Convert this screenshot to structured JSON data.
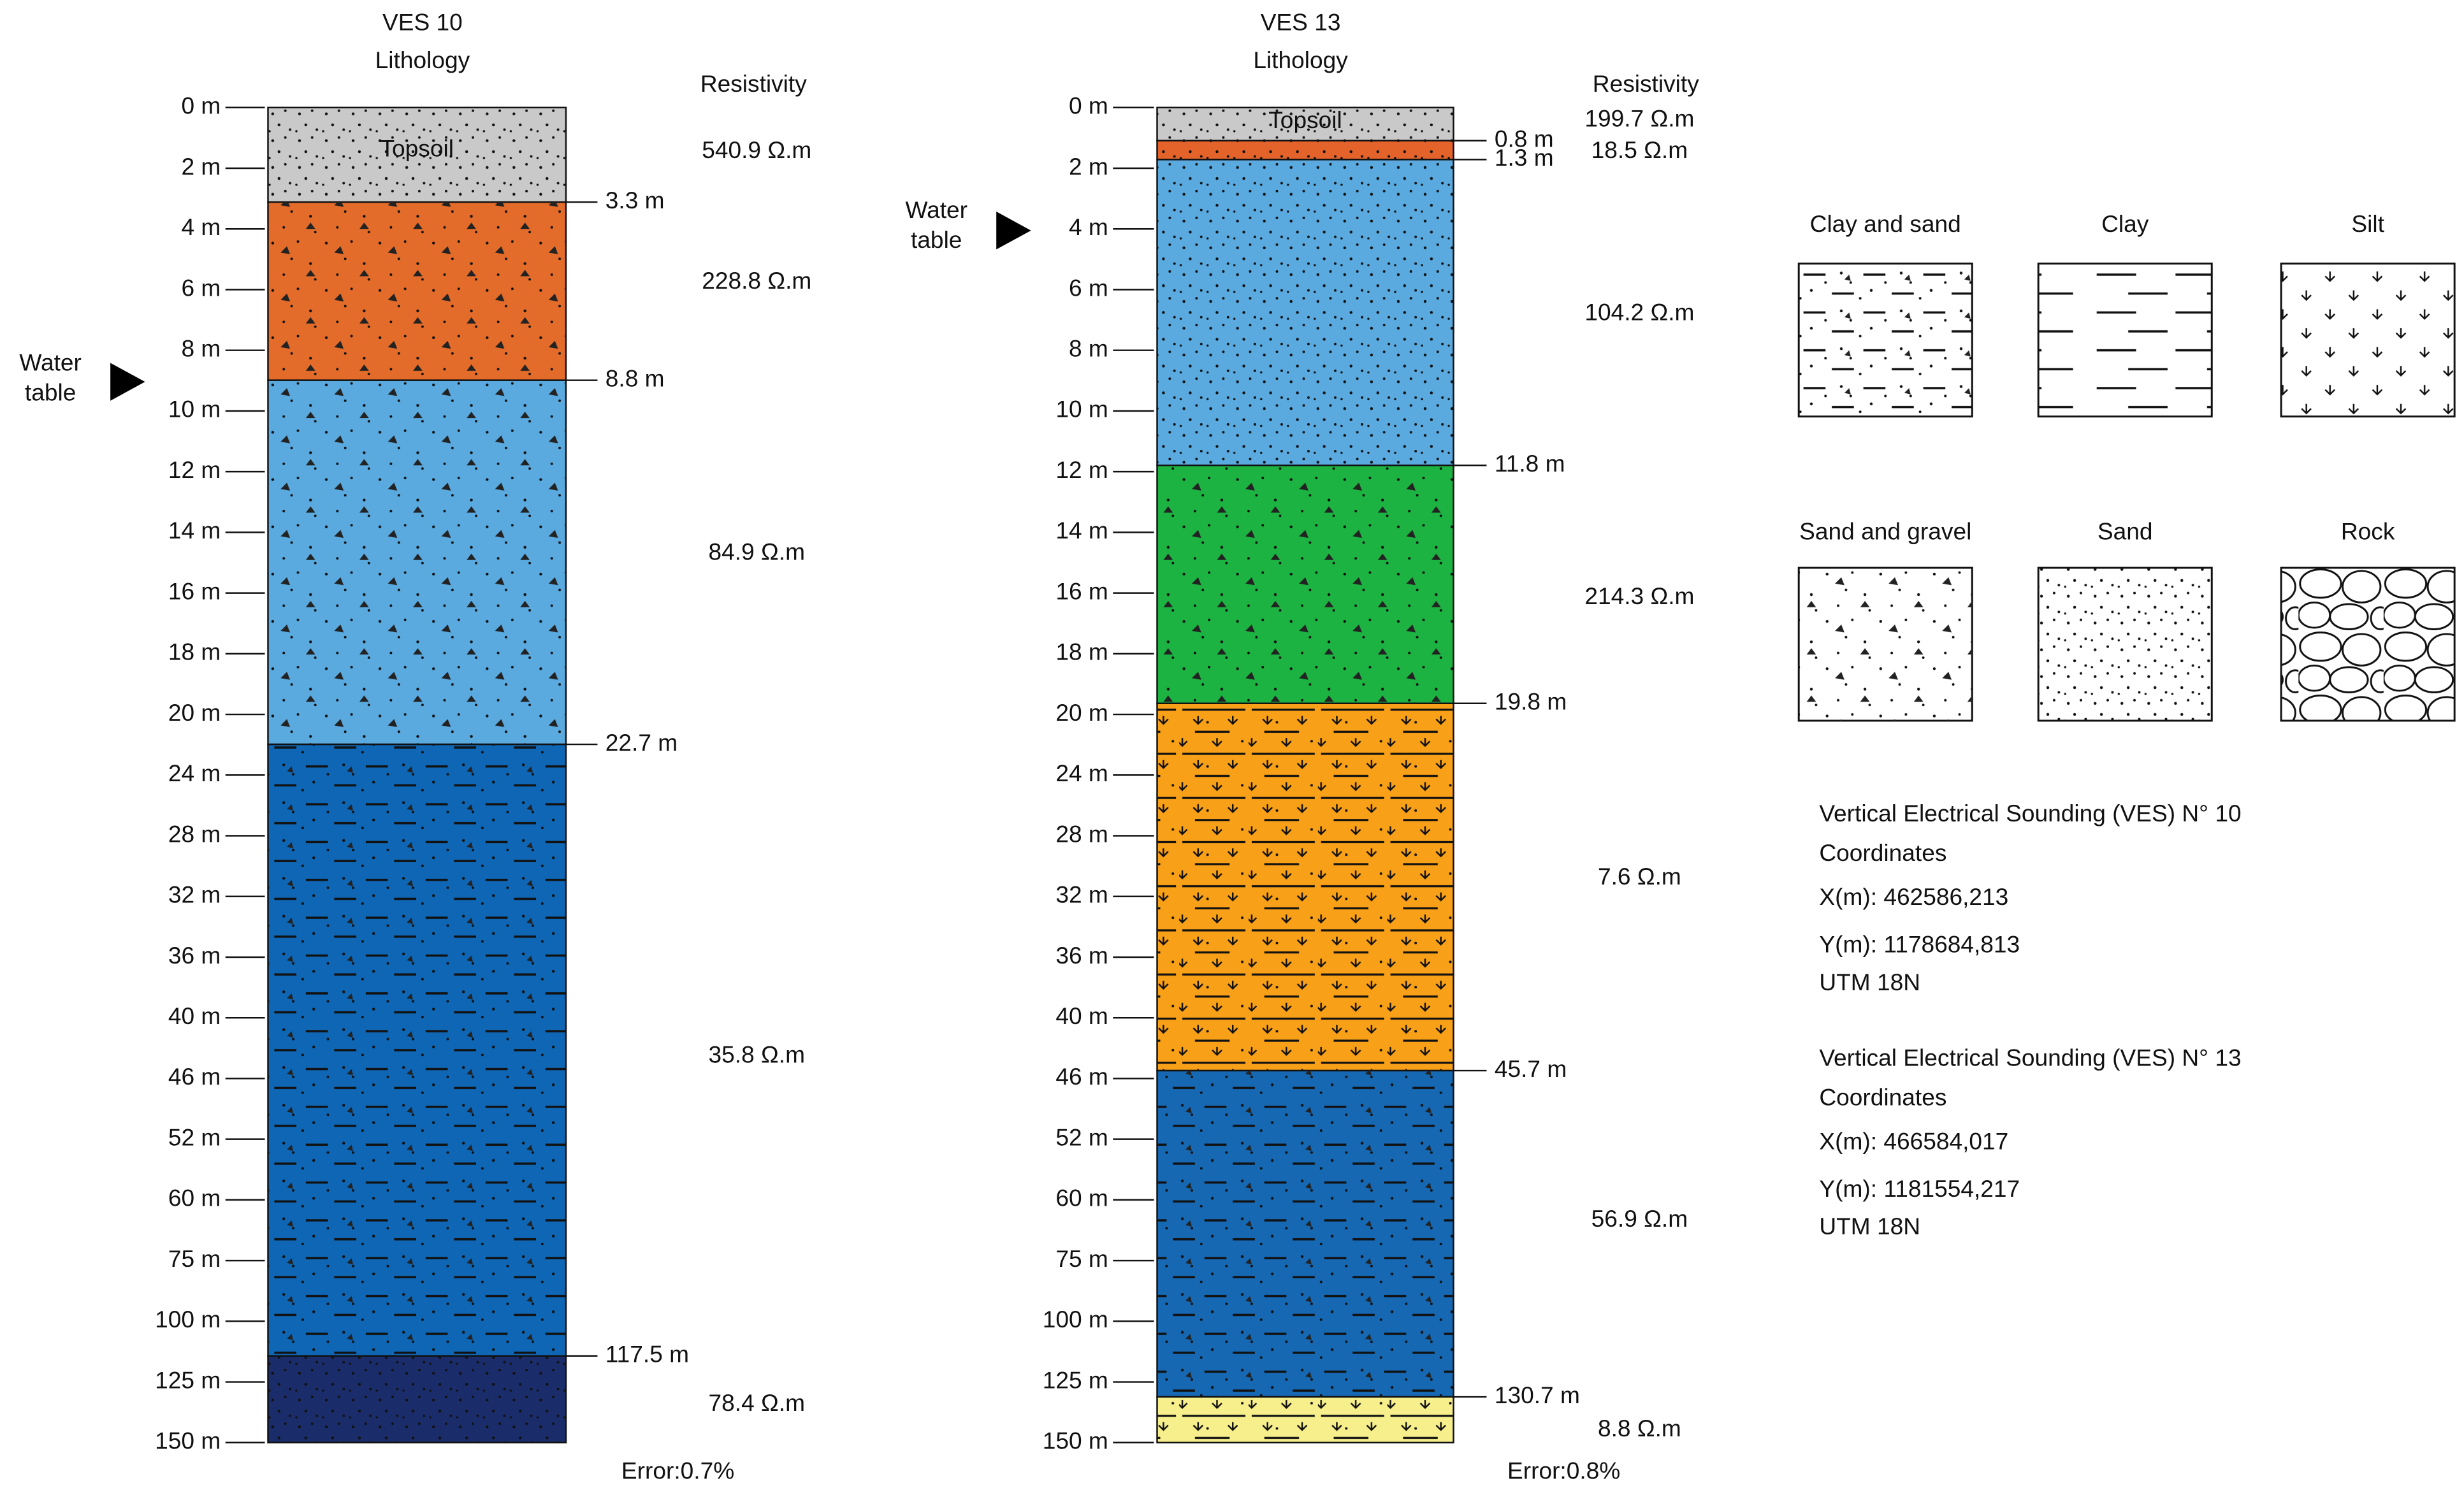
{
  "logs": [
    {
      "title": "VES 10",
      "subtitle": "Lithology",
      "resistivity_header": "Resistivity",
      "water_table": [
        "Water",
        "table"
      ],
      "depth_ticks": [
        "0 m",
        "2 m",
        "4 m",
        "6 m",
        "8 m",
        "10 m",
        "12 m",
        "14 m",
        "16 m",
        "18 m",
        "20 m",
        "24 m",
        "28 m",
        "32 m",
        "36 m",
        "40 m",
        "46 m",
        "52 m",
        "60 m",
        "75 m",
        "100 m",
        "125 m",
        "150 m"
      ],
      "layers": [
        {
          "label": "Topsoil",
          "bottom": "3.3 m",
          "resistivity": "540.9 Ω.m"
        },
        {
          "bottom": "8.8 m",
          "resistivity": "228.8 Ω.m"
        },
        {
          "bottom": "22.7 m",
          "resistivity": "84.9 Ω.m"
        },
        {
          "bottom": "117.5 m",
          "resistivity": "35.8 Ω.m"
        },
        {
          "resistivity": "78.4 Ω.m"
        }
      ],
      "error": "Error:0.7%"
    },
    {
      "title": "VES 13",
      "subtitle": "Lithology",
      "resistivity_header": "Resistivity",
      "water_table": [
        "Water",
        "table"
      ],
      "depth_ticks": [
        "0 m",
        "2 m",
        "4 m",
        "6 m",
        "8 m",
        "10 m",
        "12 m",
        "14 m",
        "16 m",
        "18 m",
        "20 m",
        "24 m",
        "28 m",
        "32 m",
        "36 m",
        "40 m",
        "46 m",
        "52 m",
        "60 m",
        "75 m",
        "100 m",
        "125 m",
        "150 m"
      ],
      "layers": [
        {
          "label": "Topsoil",
          "bottom": "0.8 m",
          "resistivity": "199.7 Ω.m"
        },
        {
          "bottom": "1.3 m",
          "resistivity": "18.5 Ω.m"
        },
        {
          "bottom": "11.8 m",
          "resistivity": "104.2 Ω.m"
        },
        {
          "bottom": "19.8 m",
          "resistivity": "214.3 Ω.m"
        },
        {
          "bottom": "45.7 m",
          "resistivity": "7.6 Ω.m"
        },
        {
          "bottom": "130.7 m",
          "resistivity": "56.9 Ω.m"
        },
        {
          "resistivity": "8.8 Ω.m"
        }
      ],
      "error": "Error:0.8%"
    }
  ],
  "legend": [
    "Clay and sand",
    "Clay",
    "Silt",
    "Sand and gravel",
    "Sand",
    "Rock"
  ],
  "info": [
    {
      "title": "Vertical Electrical Sounding (VES) N° 10",
      "lines": [
        "Coordinates",
        "X(m): 462586,213",
        "Y(m): 1178684,813",
        "UTM 18N"
      ]
    },
    {
      "title": "Vertical Electrical Sounding (VES) N° 13",
      "lines": [
        "Coordinates",
        "X(m): 466584,017",
        "Y(m): 1181554,217",
        "UTM 18N"
      ]
    }
  ]
}
